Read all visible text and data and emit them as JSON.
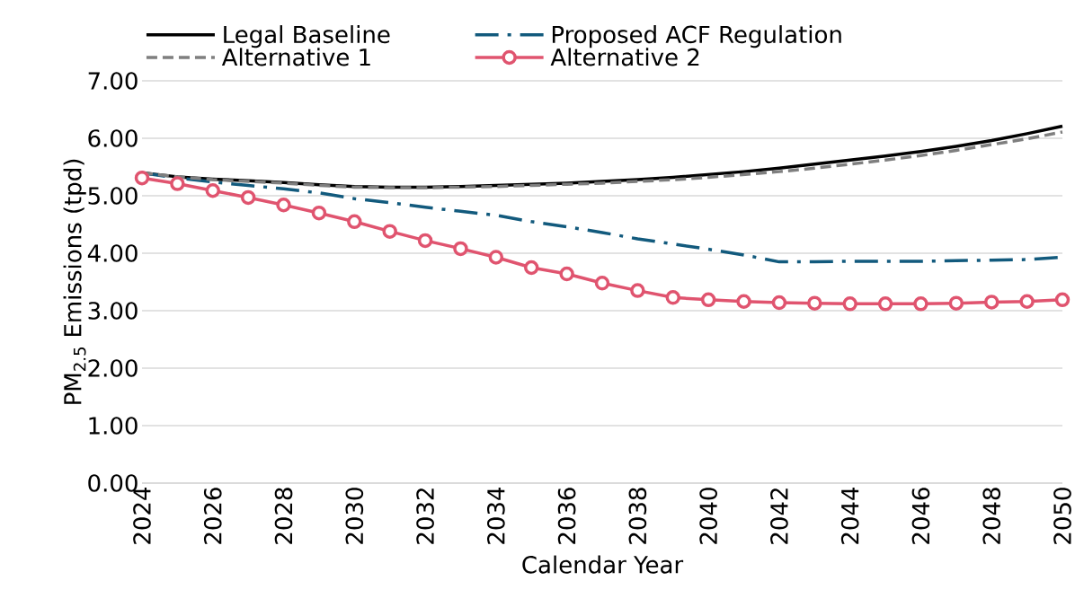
{
  "chart_data": {
    "type": "line",
    "xlabel": "Calendar Year",
    "ylabel": "PM$_{2.5}$ Emissions (tpd)",
    "x": [
      2024,
      2025,
      2026,
      2027,
      2028,
      2029,
      2030,
      2031,
      2032,
      2033,
      2034,
      2035,
      2036,
      2037,
      2038,
      2039,
      2040,
      2041,
      2042,
      2043,
      2044,
      2045,
      2046,
      2047,
      2048,
      2049,
      2050
    ],
    "series": [
      {
        "name": "Legal Baseline",
        "color": "#000000",
        "line_style": "solid",
        "marker": "none",
        "values": [
          5.4,
          5.33,
          5.29,
          5.26,
          5.23,
          5.19,
          5.16,
          5.15,
          5.15,
          5.16,
          5.18,
          5.2,
          5.22,
          5.25,
          5.28,
          5.32,
          5.37,
          5.42,
          5.48,
          5.55,
          5.62,
          5.69,
          5.77,
          5.86,
          5.96,
          6.08,
          6.21
        ]
      },
      {
        "name": "Proposed ACF Regulation",
        "color": "#125a7d",
        "line_style": "dashdot",
        "marker": "none",
        "values": [
          5.4,
          5.31,
          5.24,
          5.18,
          5.12,
          5.05,
          4.95,
          4.88,
          4.8,
          4.73,
          4.66,
          4.55,
          4.46,
          4.36,
          4.25,
          4.16,
          4.07,
          3.97,
          3.85,
          3.85,
          3.86,
          3.86,
          3.86,
          3.87,
          3.88,
          3.89,
          3.93
        ]
      },
      {
        "name": "Alternative 1",
        "color": "#7f7f7f",
        "line_style": "dashed",
        "marker": "none",
        "values": [
          5.4,
          5.33,
          5.28,
          5.25,
          5.22,
          5.18,
          5.15,
          5.14,
          5.14,
          5.15,
          5.16,
          5.18,
          5.2,
          5.22,
          5.25,
          5.28,
          5.32,
          5.37,
          5.42,
          5.48,
          5.55,
          5.62,
          5.7,
          5.79,
          5.89,
          5.99,
          6.11
        ]
      },
      {
        "name": "Alternative 2",
        "color": "#e0546f",
        "line_style": "solid",
        "marker": "circle",
        "values": [
          5.31,
          5.21,
          5.09,
          4.97,
          4.84,
          4.7,
          4.55,
          4.38,
          4.22,
          4.08,
          3.93,
          3.75,
          3.64,
          3.48,
          3.35,
          3.23,
          3.19,
          3.16,
          3.14,
          3.13,
          3.12,
          3.12,
          3.12,
          3.13,
          3.15,
          3.16,
          3.19
        ]
      }
    ],
    "xlim": [
      2024,
      2050
    ],
    "xticks": [
      2024,
      2026,
      2028,
      2030,
      2032,
      2034,
      2036,
      2038,
      2040,
      2042,
      2044,
      2046,
      2048,
      2050
    ],
    "ylim": [
      0,
      7
    ],
    "yticks": [
      {
        "value": 0,
        "label": "0.00"
      },
      {
        "value": 1,
        "label": "1.00"
      },
      {
        "value": 2,
        "label": "2.00"
      },
      {
        "value": 3,
        "label": "3.00"
      },
      {
        "value": 4,
        "label": "4.00"
      },
      {
        "value": 5,
        "label": "5.00"
      },
      {
        "value": 6,
        "label": "6.00"
      },
      {
        "value": 7,
        "label": "7.00"
      }
    ],
    "grid": "y",
    "legend": "top"
  }
}
